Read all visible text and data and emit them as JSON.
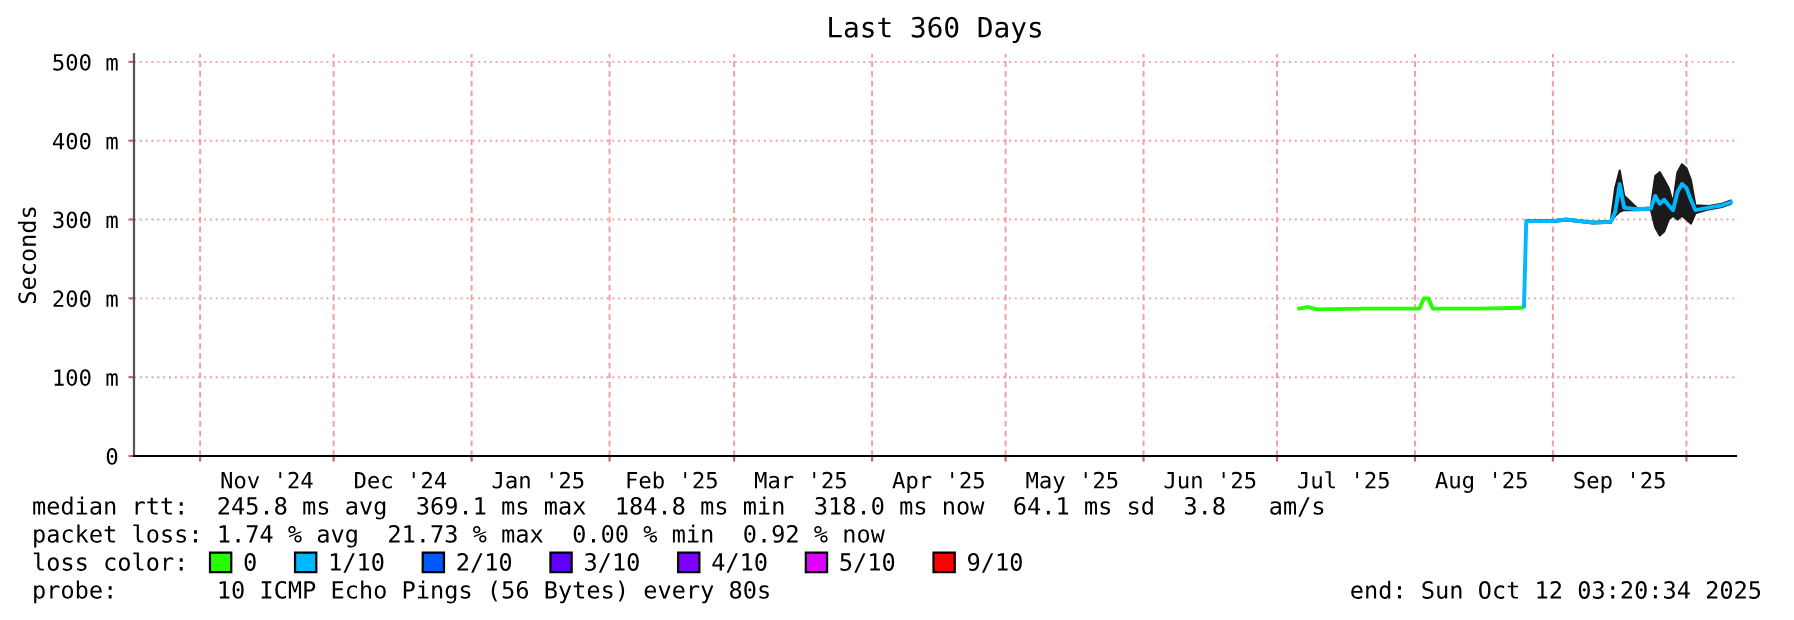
{
  "chart_data": {
    "type": "line",
    "title": "Last 360 Days",
    "ylabel": "Seconds",
    "xlim": [
      "2024-10-17T03:20",
      "2025-10-12T03:20"
    ],
    "xticks": [
      {
        "value": "2024-11-01",
        "label": null
      },
      {
        "value": "2024-11-16",
        "label": "Nov '24"
      },
      {
        "value": "2024-12-01",
        "label": null
      },
      {
        "value": "2024-12-16",
        "label": "Dec '24"
      },
      {
        "value": "2025-01-01",
        "label": null
      },
      {
        "value": "2025-01-16",
        "label": "Jan '25"
      },
      {
        "value": "2025-02-01",
        "label": null
      },
      {
        "value": "2025-02-15",
        "label": "Feb '25"
      },
      {
        "value": "2025-03-01",
        "label": null
      },
      {
        "value": "2025-03-16",
        "label": "Mar '25"
      },
      {
        "value": "2025-04-01",
        "label": null
      },
      {
        "value": "2025-04-16",
        "label": "Apr '25"
      },
      {
        "value": "2025-05-01",
        "label": null
      },
      {
        "value": "2025-05-16",
        "label": "May '25"
      },
      {
        "value": "2025-06-01",
        "label": null
      },
      {
        "value": "2025-06-16",
        "label": "Jun '25"
      },
      {
        "value": "2025-07-01",
        "label": null
      },
      {
        "value": "2025-07-16",
        "label": "Jul '25"
      },
      {
        "value": "2025-08-01",
        "label": null
      },
      {
        "value": "2025-08-16",
        "label": "Aug '25"
      },
      {
        "value": "2025-09-01",
        "label": null
      },
      {
        "value": "2025-09-16",
        "label": "Sep '25"
      },
      {
        "value": "2025-10-01",
        "label": null
      }
    ],
    "ylim": [
      0,
      510
    ],
    "yticks": [
      0,
      {
        "value": 100,
        "label": "100 m"
      },
      {
        "value": 200,
        "label": "200 m"
      },
      {
        "value": 300,
        "label": "300 m"
      },
      {
        "value": 400,
        "label": "400 m"
      },
      {
        "value": 500,
        "label": "500 m"
      }
    ],
    "grid": true,
    "legend": "bottom",
    "legend_title": "loss color:",
    "series": [
      {
        "name": "0",
        "color": "#26ff00",
        "x": [
          "2025-07-06",
          "2025-07-08",
          "2025-07-10",
          "2025-07-20",
          "2025-08-01",
          "2025-08-02",
          "2025-08-03",
          "2025-08-04",
          "2025-08-05",
          "2025-08-15",
          "2025-08-25"
        ],
        "values": [
          187,
          189,
          186,
          187,
          187,
          187,
          200,
          200,
          187,
          187,
          188
        ]
      },
      {
        "name": "1/10",
        "color": "#00b8ff",
        "x": [
          "2025-08-25T12:00",
          "2025-08-26",
          "2025-09-01",
          "2025-09-04",
          "2025-09-10",
          "2025-09-14",
          "2025-09-15",
          "2025-09-16",
          "2025-09-17",
          "2025-09-20",
          "2025-09-23",
          "2025-09-24",
          "2025-09-25",
          "2025-09-26",
          "2025-09-27",
          "2025-09-28",
          "2025-09-29",
          "2025-09-30",
          "2025-10-01",
          "2025-10-02",
          "2025-10-03",
          "2025-10-06",
          "2025-10-09",
          "2025-10-11"
        ],
        "values": [
          190,
          298,
          298,
          300,
          296,
          297,
          310,
          345,
          315,
          313,
          314,
          330,
          320,
          325,
          318,
          312,
          335,
          345,
          340,
          325,
          312,
          315,
          318,
          322
        ],
        "lower": [
          190,
          297,
          297,
          299,
          295,
          296,
          305,
          310,
          312,
          312,
          313,
          290,
          280,
          285,
          300,
          305,
          300,
          305,
          300,
          295,
          308,
          313,
          316,
          320
        ],
        "upper": [
          190,
          299,
          299,
          301,
          297,
          298,
          340,
          362,
          330,
          314,
          315,
          355,
          360,
          350,
          340,
          320,
          360,
          370,
          365,
          350,
          318,
          317,
          320,
          324
        ]
      },
      {
        "name": "2/10",
        "color": "#0059ff"
      },
      {
        "name": "3/10",
        "color": "#5e00ff"
      },
      {
        "name": "4/10",
        "color": "#7e00ff"
      },
      {
        "name": "5/10",
        "color": "#dd00ff"
      },
      {
        "name": "9/10",
        "color": "#ff0000"
      }
    ],
    "annotations": [
      "median rtt:  245.8 ms avg  369.1 ms max  184.8 ms min  318.0 ms now  64.1 ms sd  3.8   am/s",
      "packet loss: 1.74 % avg  21.73 % max  0.00 % min  0.92 % now",
      "probe:       10 ICMP Echo Pings (56 Bytes) every 80s",
      "end: Sun Oct 12 03:20:34 2025"
    ]
  }
}
